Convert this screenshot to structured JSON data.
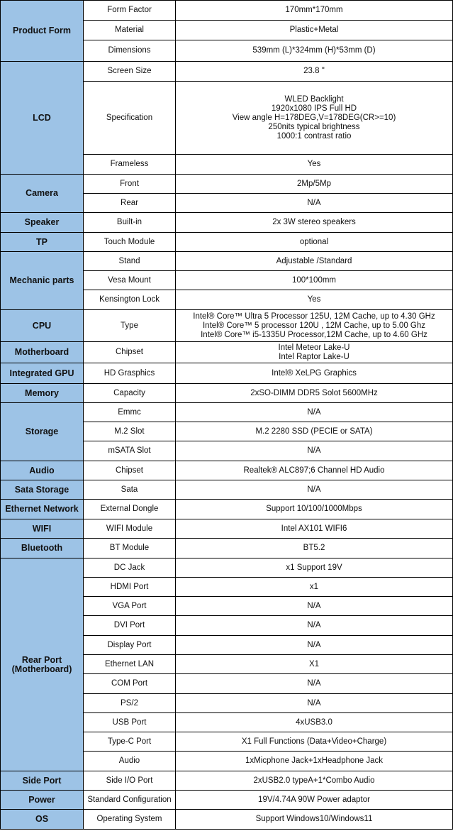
{
  "colors": {
    "category_bg": "#9dc3e6",
    "border": "#000000"
  },
  "groups": [
    {
      "category": "Product Form",
      "rows": [
        [
          "Form Factor",
          "170mm*170mm"
        ],
        [
          "Material",
          "Plastic+Metal"
        ],
        [
          "Dimensions",
          "539mm (L)*324mm (H)*53mm (D)"
        ]
      ]
    },
    {
      "category": "LCD",
      "rows": [
        [
          "Screen Size",
          "23.8 \""
        ],
        [
          "Specification",
          "WLED Backlight\n1920x1080 IPS Full HD\nView angle H=178DEG,V=178DEG(CR>=10)\n250nits typical brightness\n1000:1 contrast ratio"
        ],
        [
          "Frameless",
          "Yes"
        ]
      ]
    },
    {
      "category": "Camera",
      "rows": [
        [
          "Front",
          "2Mp/5Mp"
        ],
        [
          "Rear",
          "N/A"
        ]
      ]
    },
    {
      "category": "Speaker",
      "rows": [
        [
          "Built-in",
          "2x 3W stereo speakers"
        ]
      ]
    },
    {
      "category": "TP",
      "rows": [
        [
          "Touch Module",
          "optional"
        ]
      ]
    },
    {
      "category": "Mechanic parts",
      "rows": [
        [
          "Stand",
          "Adjustable /Standard"
        ],
        [
          "Vesa Mount",
          "100*100mm"
        ],
        [
          "Kensington Lock",
          "Yes"
        ]
      ]
    },
    {
      "category": "CPU",
      "rows": [
        [
          "Type",
          "Intel® Core™ Ultra 5 Processor 125U, 12M Cache, up to 4.30 GHz\nIntel® Core™ 5 processor 120U , 12M Cache, up to 5.00 Ghz\nIntel® Core™ i5-1335U Processor,12M Cache, up to 4.60 GHz"
        ]
      ]
    },
    {
      "category": "Motherboard",
      "rows": [
        [
          "Chipset",
          "Intel Meteor Lake-U\nIntel Raptor Lake-U"
        ]
      ]
    },
    {
      "category": "Integrated GPU",
      "rows": [
        [
          "HD Grasphics",
          "Intel® XeLPG Graphics"
        ]
      ]
    },
    {
      "category": "Memory",
      "rows": [
        [
          "Capacity",
          "2xSO-DIMM DDR5  Solot   5600MHz"
        ]
      ]
    },
    {
      "category": "Storage",
      "rows": [
        [
          "Emmc",
          "N/A"
        ],
        [
          "M.2 Slot",
          "M.2 2280 SSD (PECIE or SATA)"
        ],
        [
          "mSATA Slot",
          "N/A"
        ]
      ]
    },
    {
      "category": "Audio",
      "rows": [
        [
          "Chipset",
          "Realtek® ALC897;6 Channel HD Audio"
        ]
      ]
    },
    {
      "category": "Sata Storage",
      "rows": [
        [
          "Sata",
          "N/A"
        ]
      ]
    },
    {
      "category": "Ethernet Network",
      "rows": [
        [
          "External Dongle",
          "Support 10/100/1000Mbps"
        ]
      ]
    },
    {
      "category": "WIFI",
      "rows": [
        [
          "WIFI Module",
          "Intel AX101 WIFI6"
        ]
      ]
    },
    {
      "category": "Bluetooth",
      "rows": [
        [
          "BT Module",
          "BT5.2"
        ]
      ]
    },
    {
      "category": "Rear Port\n(Motherboard)",
      "rows": [
        [
          "DC Jack",
          "x1 Support 19V"
        ],
        [
          "HDMI Port",
          "x1"
        ],
        [
          "VGA Port",
          "N/A"
        ],
        [
          "DVI Port",
          "N/A"
        ],
        [
          "Display Port",
          "N/A"
        ],
        [
          "Ethernet LAN",
          "X1"
        ],
        [
          "COM Port",
          "N/A"
        ],
        [
          "PS/2",
          "N/A"
        ],
        [
          "USB Port",
          "4xUSB3.0"
        ],
        [
          "Type-C Port",
          "X1 Full Functions (Data+Video+Charge)"
        ],
        [
          "Audio",
          "1xMicphone Jack+1xHeadphone Jack"
        ]
      ]
    },
    {
      "category": "Side Port",
      "rows": [
        [
          "Side I/O Port",
          "2xUSB2.0 typeA+1*Combo Audio"
        ]
      ]
    },
    {
      "category": "Power",
      "rows": [
        [
          "Standard Configuration",
          "19V/4.74A  90W Power adaptor"
        ]
      ]
    },
    {
      "category": "OS",
      "rows": [
        [
          "Operating System",
          "Support Windows10/Windows11"
        ]
      ]
    }
  ]
}
